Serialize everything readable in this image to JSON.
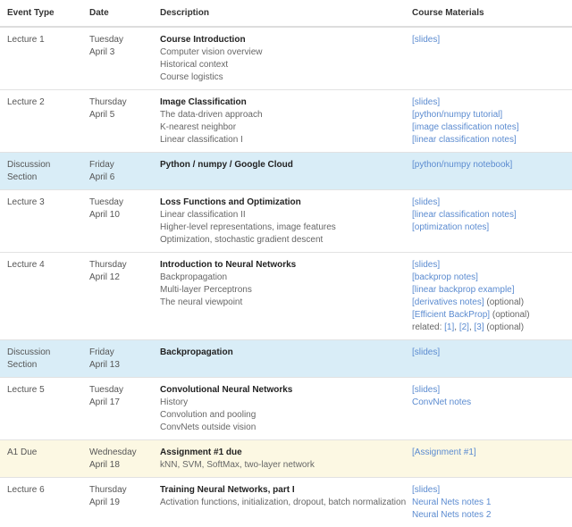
{
  "header": {
    "event_type": "Event Type",
    "date": "Date",
    "description": "Description",
    "materials": "Course Materials"
  },
  "rows": [
    {
      "kind": "lecture",
      "event": "Lecture 1",
      "day": "Tuesday",
      "date": "April 3",
      "title": "Course Introduction",
      "details": [
        "Computer vision overview",
        "Historical context",
        "Course logistics"
      ],
      "materials": [
        {
          "parts": [
            {
              "text": "[slides]",
              "link": true
            }
          ]
        }
      ]
    },
    {
      "kind": "lecture",
      "event": "Lecture 2",
      "day": "Thursday",
      "date": "April 5",
      "title": "Image Classification",
      "details": [
        "The data-driven approach",
        "K-nearest neighbor",
        "Linear classification I"
      ],
      "materials": [
        {
          "parts": [
            {
              "text": "[slides]",
              "link": true
            }
          ]
        },
        {
          "parts": [
            {
              "text": "[python/numpy tutorial]",
              "link": true
            }
          ]
        },
        {
          "parts": [
            {
              "text": "[image classification notes]",
              "link": true
            }
          ]
        },
        {
          "parts": [
            {
              "text": "[linear classification notes]",
              "link": true
            }
          ]
        }
      ]
    },
    {
      "kind": "discussion",
      "event": "Discussion Section",
      "day": "Friday",
      "date": "April 6",
      "title": "Python / numpy / Google Cloud",
      "details": [],
      "materials": [
        {
          "parts": [
            {
              "text": "[python/numpy notebook]",
              "link": true
            }
          ]
        }
      ]
    },
    {
      "kind": "lecture",
      "event": "Lecture 3",
      "day": "Tuesday",
      "date": "April 10",
      "title": "Loss Functions and Optimization",
      "details": [
        "Linear classification II",
        "Higher-level representations, image features",
        "Optimization, stochastic gradient descent"
      ],
      "materials": [
        {
          "parts": [
            {
              "text": "[slides]",
              "link": true
            }
          ]
        },
        {
          "parts": [
            {
              "text": "[linear classification notes]",
              "link": true
            }
          ]
        },
        {
          "parts": [
            {
              "text": "[optimization notes]",
              "link": true
            }
          ]
        }
      ]
    },
    {
      "kind": "lecture",
      "event": "Lecture 4",
      "day": "Thursday",
      "date": "April 12",
      "title": "Introduction to Neural Networks",
      "details": [
        "Backpropagation",
        "Multi-layer Perceptrons",
        "The neural viewpoint"
      ],
      "materials": [
        {
          "parts": [
            {
              "text": "[slides]",
              "link": true
            }
          ]
        },
        {
          "parts": [
            {
              "text": "[backprop notes]",
              "link": true
            }
          ]
        },
        {
          "parts": [
            {
              "text": "[linear backprop example]",
              "link": true
            }
          ]
        },
        {
          "parts": [
            {
              "text": "[derivatives notes]",
              "link": true
            },
            {
              "text": " (optional)",
              "link": false
            }
          ]
        },
        {
          "parts": [
            {
              "text": "[Efficient BackProp]",
              "link": true
            },
            {
              "text": " (optional)",
              "link": false
            }
          ]
        },
        {
          "parts": [
            {
              "text": "related: ",
              "link": false
            },
            {
              "text": "[1]",
              "link": true
            },
            {
              "text": ", ",
              "link": false
            },
            {
              "text": "[2]",
              "link": true
            },
            {
              "text": ", ",
              "link": false
            },
            {
              "text": "[3]",
              "link": true
            },
            {
              "text": " (optional)",
              "link": false
            }
          ]
        }
      ]
    },
    {
      "kind": "discussion",
      "event": "Discussion Section",
      "day": "Friday",
      "date": "April 13",
      "title": "Backpropagation",
      "details": [],
      "materials": [
        {
          "parts": [
            {
              "text": "[slides]",
              "link": true
            }
          ]
        }
      ]
    },
    {
      "kind": "lecture",
      "event": "Lecture 5",
      "day": "Tuesday",
      "date": "April 17",
      "title": "Convolutional Neural Networks",
      "details": [
        "History",
        "Convolution and pooling",
        "ConvNets outside vision"
      ],
      "materials": [
        {
          "parts": [
            {
              "text": "[slides]",
              "link": true
            }
          ]
        },
        {
          "parts": [
            {
              "text": "ConvNet notes",
              "link": true
            }
          ]
        }
      ]
    },
    {
      "kind": "due",
      "event": "A1 Due",
      "day": "Wednesday",
      "date": "April 18",
      "title": "Assignment #1 due",
      "details": [
        "kNN, SVM, SoftMax, two-layer network"
      ],
      "materials": [
        {
          "parts": [
            {
              "text": "[Assignment #1]",
              "link": true
            }
          ]
        }
      ]
    },
    {
      "kind": "lecture",
      "event": "Lecture 6",
      "day": "Thursday",
      "date": "April 19",
      "title": "Training Neural Networks, part I",
      "details": [
        "Activation functions, initialization, dropout, batch normalization"
      ],
      "materials": [
        {
          "parts": [
            {
              "text": "[slides]",
              "link": true
            }
          ]
        },
        {
          "parts": [
            {
              "text": "Neural Nets notes 1",
              "link": true
            }
          ]
        },
        {
          "parts": [
            {
              "text": "Neural Nets notes 2",
              "link": true
            }
          ]
        }
      ]
    }
  ]
}
